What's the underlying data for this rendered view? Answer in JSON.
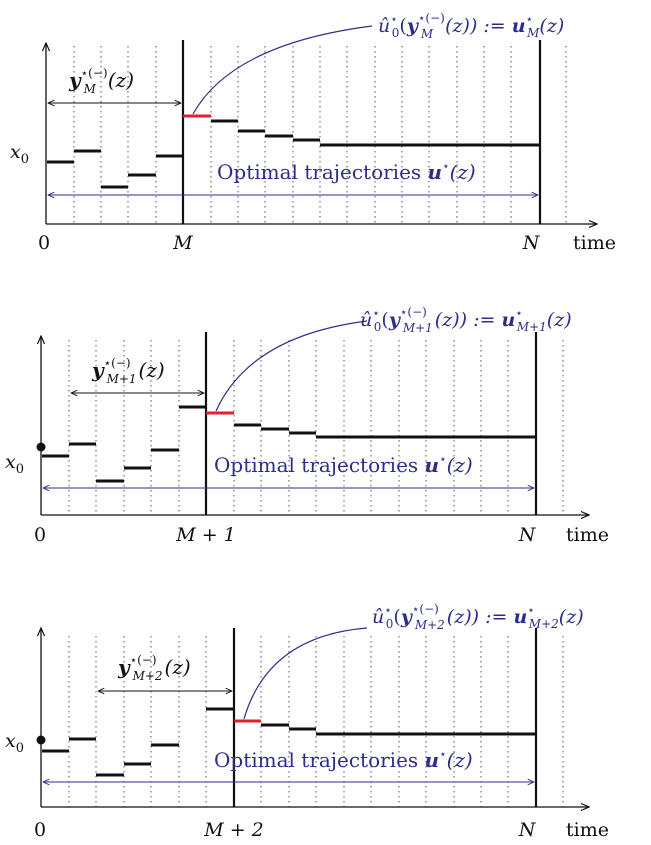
{
  "colors": {
    "axis": "#111111",
    "segment": "#111111",
    "highlight": "#e0202a",
    "annotation": "#2e2e8a",
    "grid": "#555555"
  },
  "panels": [
    {
      "x0_label": "x",
      "x0_sub": "0",
      "origin_label": "0",
      "m_label": "M",
      "n_label": "N",
      "time_label": "time",
      "traj_label": "Optimal trajectories ",
      "traj_sym": "u",
      "traj_sup": "⋆",
      "traj_arg": "(z)",
      "y_sym": "y",
      "y_sup": "⋆(−)",
      "y_sub": "M",
      "y_arg": "(z)",
      "eq_lhs": "û",
      "eq_lhs_sup": "⋆",
      "eq_lhs_sub": "0",
      "eq_lp": "(",
      "eq_y": "y",
      "eq_y_sup": "⋆(−)",
      "eq_y_sub": "M",
      "eq_tail": "(z)) := ",
      "eq_u": "u",
      "eq_u_sup": "⋆",
      "eq_u_sub": "M",
      "eq_end": "(z)"
    },
    {
      "x0_label": "x",
      "x0_sub": "0",
      "origin_label": "0",
      "m_label": "M + 1",
      "n_label": "N",
      "time_label": "time",
      "traj_label": "Optimal trajectories ",
      "traj_sym": "u",
      "traj_sup": "⋆",
      "traj_arg": "(z)",
      "y_sym": "y",
      "y_sup": "⋆(−)",
      "y_sub": "M+1",
      "y_arg": "(z)",
      "eq_lhs": "û",
      "eq_lhs_sup": "⋆",
      "eq_lhs_sub": "0",
      "eq_lp": "(",
      "eq_y": "y",
      "eq_y_sup": "⋆(−)",
      "eq_y_sub": "M+1",
      "eq_tail": "(z)) := ",
      "eq_u": "u",
      "eq_u_sup": "⋆",
      "eq_u_sub": "M+1",
      "eq_end": "(z)"
    },
    {
      "x0_label": "x",
      "x0_sub": "0",
      "origin_label": "0",
      "m_label": "M + 2",
      "n_label": "N",
      "time_label": "time",
      "traj_label": "Optimal trajectories ",
      "traj_sym": "u",
      "traj_sup": "⋆",
      "traj_arg": "(z)",
      "y_sym": "y",
      "y_sup": "⋆(−)",
      "y_sub": "M+2",
      "y_arg": "(z)",
      "eq_lhs": "û",
      "eq_lhs_sup": "⋆",
      "eq_lhs_sub": "0",
      "eq_lp": "(",
      "eq_y": "y",
      "eq_y_sup": "⋆(−)",
      "eq_y_sub": "M+2",
      "eq_tail": "(z)) := ",
      "eq_u": "u",
      "eq_u_sup": "⋆",
      "eq_u_sub": "M+2",
      "eq_end": "(z)"
    }
  ]
}
